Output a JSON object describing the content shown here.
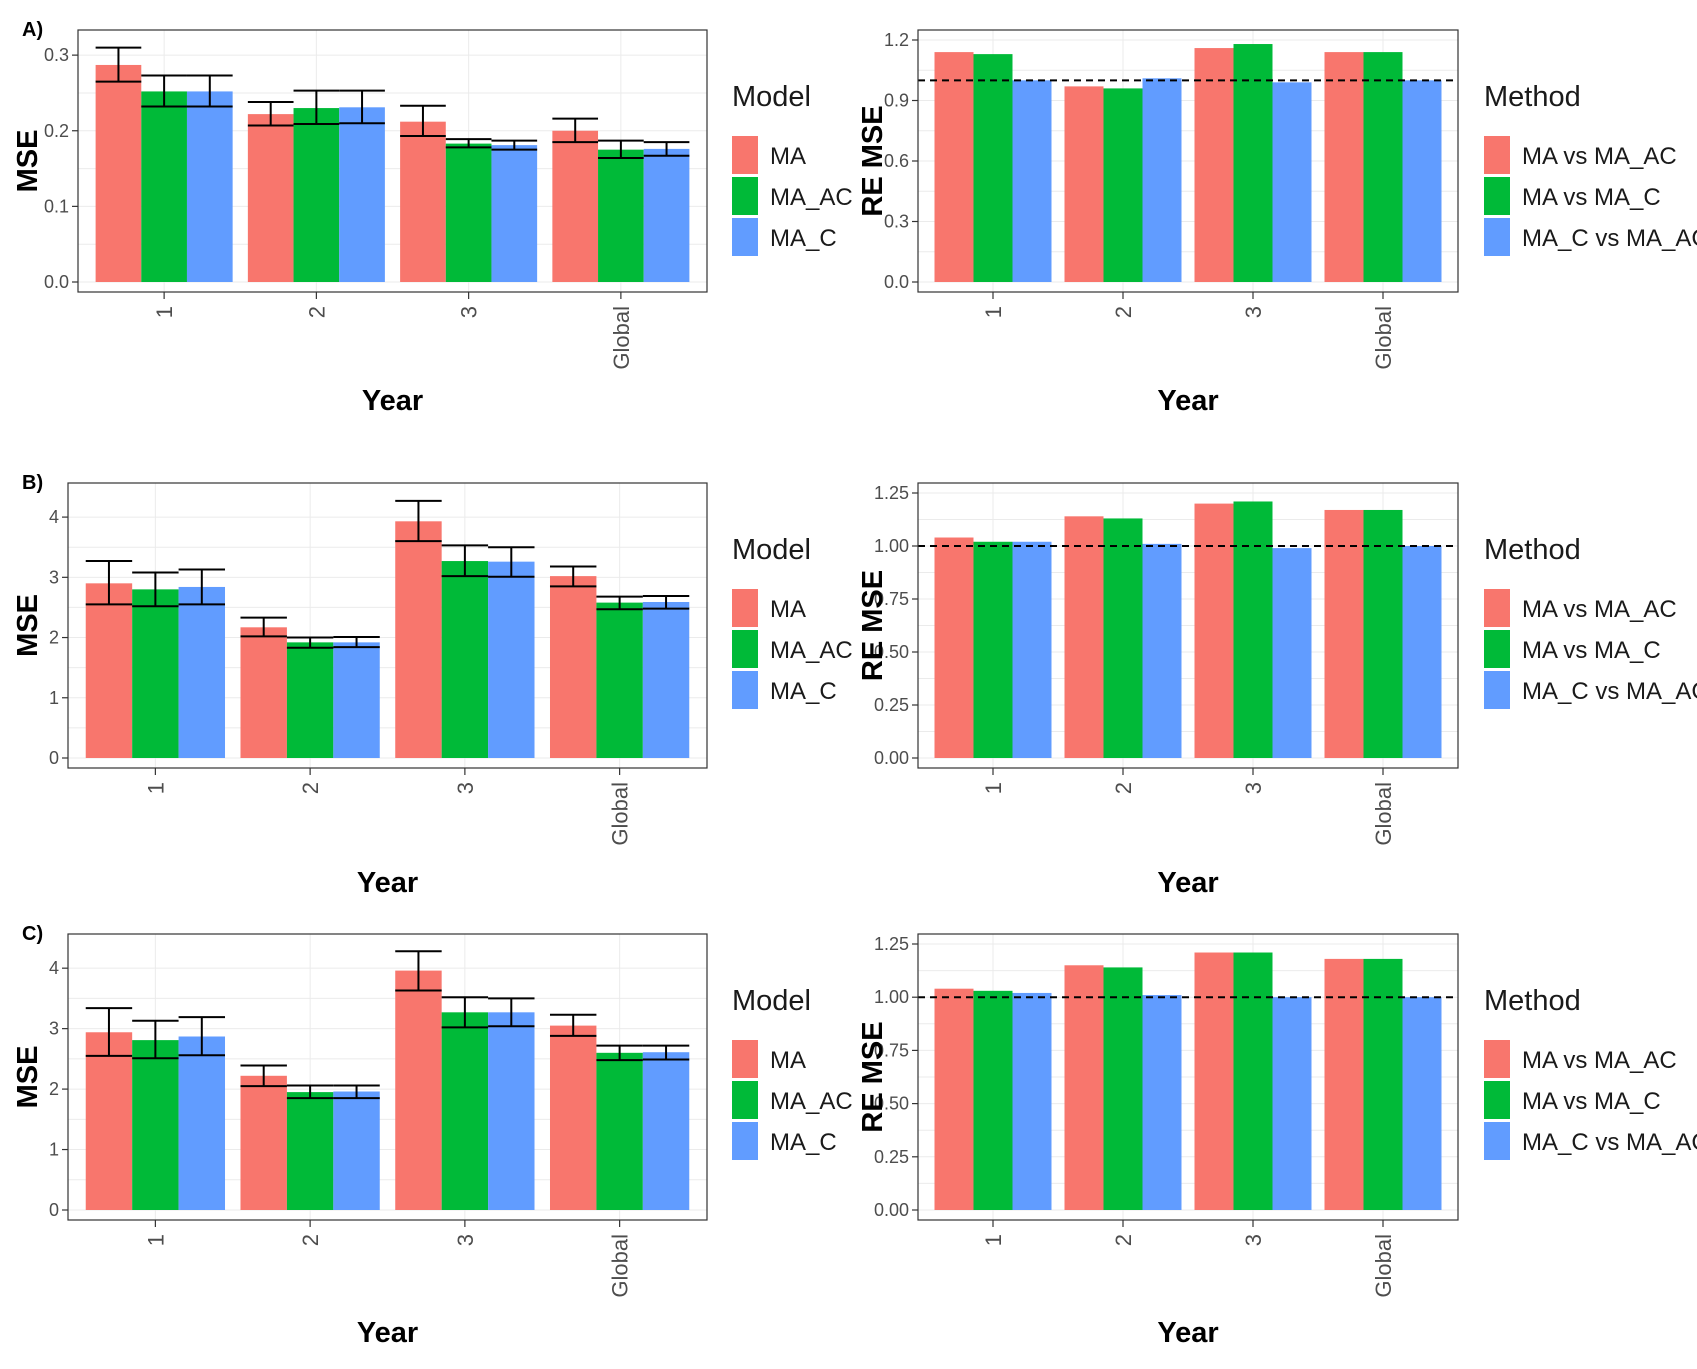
{
  "colors": {
    "MA": "#F8766D",
    "MA_AC": "#00BA38",
    "MA_C": "#619CFF",
    "panel_border": "#333333",
    "grid": "#ebebeb",
    "reference_line": "#000000"
  },
  "rows": [
    {
      "letter": "A)",
      "left": {
        "chart_data": {
          "type": "bar",
          "categories": [
            "1",
            "2",
            "3",
            "Global"
          ],
          "series": [
            {
              "name": "MA",
              "values": [
                0.287,
                0.222,
                0.212,
                0.2
              ],
              "err_low": [
                0.265,
                0.207,
                0.193,
                0.185
              ],
              "err_high": [
                0.31,
                0.238,
                0.233,
                0.216
              ]
            },
            {
              "name": "MA_AC",
              "values": [
                0.252,
                0.23,
                0.183,
                0.175
              ],
              "err_low": [
                0.232,
                0.209,
                0.178,
                0.164
              ],
              "err_high": [
                0.273,
                0.253,
                0.189,
                0.187
              ]
            },
            {
              "name": "MA_C",
              "values": [
                0.252,
                0.231,
                0.181,
                0.176
              ],
              "err_low": [
                0.232,
                0.21,
                0.175,
                0.167
              ],
              "err_high": [
                0.273,
                0.253,
                0.187,
                0.185
              ]
            }
          ],
          "xlabel": "Year",
          "ylabel": "MSE",
          "ylim": [
            0,
            0.32
          ],
          "yticks": [
            "0.0",
            "0.1",
            "0.2",
            "0.3"
          ],
          "legend_title": "Model",
          "legend_position": "right",
          "grid": true
        }
      },
      "right": {
        "chart_data": {
          "type": "bar",
          "categories": [
            "1",
            "2",
            "3",
            "Global"
          ],
          "series": [
            {
              "name": "MA vs MA_AC",
              "values": [
                1.14,
                0.97,
                1.16,
                1.14
              ]
            },
            {
              "name": "MA vs MA_C",
              "values": [
                1.13,
                0.96,
                1.18,
                1.14
              ]
            },
            {
              "name": "MA_C vs MA_AC",
              "values": [
                1.0,
                1.01,
                0.99,
                1.0
              ]
            }
          ],
          "reference_line": 1.0,
          "xlabel": "Year",
          "ylabel": "RE MSE",
          "ylim": [
            0,
            1.2
          ],
          "yticks": [
            "0.0",
            "0.3",
            "0.6",
            "0.9",
            "1.2"
          ],
          "legend_title": "Method",
          "legend_position": "right",
          "grid": true
        }
      }
    },
    {
      "letter": "B)",
      "left": {
        "chart_data": {
          "type": "bar",
          "categories": [
            "1",
            "2",
            "3",
            "Global"
          ],
          "series": [
            {
              "name": "MA",
              "values": [
                2.9,
                2.17,
                3.93,
                3.02
              ],
              "err_low": [
                2.55,
                2.02,
                3.6,
                2.85
              ],
              "err_high": [
                3.27,
                2.33,
                4.27,
                3.18
              ]
            },
            {
              "name": "MA_AC",
              "values": [
                2.8,
                1.92,
                3.27,
                2.58
              ],
              "err_low": [
                2.52,
                1.83,
                3.02,
                2.47
              ],
              "err_high": [
                3.08,
                2.0,
                3.53,
                2.68
              ]
            },
            {
              "name": "MA_C",
              "values": [
                2.84,
                1.92,
                3.26,
                2.59
              ],
              "err_low": [
                2.55,
                1.84,
                3.01,
                2.48
              ],
              "err_high": [
                3.13,
                2.01,
                3.5,
                2.69
              ]
            }
          ],
          "xlabel": "Year",
          "ylabel": "MSE",
          "ylim": [
            0,
            4.4
          ],
          "yticks": [
            "0",
            "1",
            "2",
            "3",
            "4"
          ],
          "legend_title": "Model",
          "legend_position": "right",
          "grid": true
        }
      },
      "right": {
        "chart_data": {
          "type": "bar",
          "categories": [
            "1",
            "2",
            "3",
            "Global"
          ],
          "series": [
            {
              "name": "MA vs MA_AC",
              "values": [
                1.04,
                1.14,
                1.2,
                1.17
              ]
            },
            {
              "name": "MA vs MA_C",
              "values": [
                1.02,
                1.13,
                1.21,
                1.17
              ]
            },
            {
              "name": "MA_C vs MA_AC",
              "values": [
                1.02,
                1.01,
                0.99,
                1.0
              ]
            }
          ],
          "reference_line": 1.0,
          "xlabel": "Year",
          "ylabel": "RE MSE",
          "ylim": [
            0,
            1.25
          ],
          "yticks": [
            "0.00",
            "0.25",
            "0.50",
            "0.75",
            "1.00",
            "1.25"
          ],
          "legend_title": "Method",
          "legend_position": "right",
          "grid": true
        }
      }
    },
    {
      "letter": "C)",
      "left": {
        "chart_data": {
          "type": "bar",
          "categories": [
            "1",
            "2",
            "3",
            "Global"
          ],
          "series": [
            {
              "name": "MA",
              "values": [
                2.94,
                2.22,
                3.96,
                3.05
              ],
              "err_low": [
                2.55,
                2.05,
                3.63,
                2.88
              ],
              "err_high": [
                3.34,
                2.39,
                4.28,
                3.23
              ]
            },
            {
              "name": "MA_AC",
              "values": [
                2.81,
                1.95,
                3.27,
                2.6
              ],
              "err_low": [
                2.51,
                1.85,
                3.02,
                2.48
              ],
              "err_high": [
                3.13,
                2.06,
                3.52,
                2.72
              ]
            },
            {
              "name": "MA_C",
              "values": [
                2.87,
                1.96,
                3.27,
                2.61
              ],
              "err_low": [
                2.56,
                1.85,
                3.04,
                2.49
              ],
              "err_high": [
                3.19,
                2.06,
                3.5,
                2.72
              ]
            }
          ],
          "xlabel": "Year",
          "ylabel": "MSE",
          "ylim": [
            0,
            4.4
          ],
          "yticks": [
            "0",
            "1",
            "2",
            "3",
            "4"
          ],
          "legend_title": "Model",
          "legend_position": "right",
          "grid": true
        }
      },
      "right": {
        "chart_data": {
          "type": "bar",
          "categories": [
            "1",
            "2",
            "3",
            "Global"
          ],
          "series": [
            {
              "name": "MA vs MA_AC",
              "values": [
                1.04,
                1.15,
                1.21,
                1.18
              ]
            },
            {
              "name": "MA vs MA_C",
              "values": [
                1.03,
                1.14,
                1.21,
                1.18
              ]
            },
            {
              "name": "MA_C vs MA_AC",
              "values": [
                1.02,
                1.01,
                1.0,
                1.0
              ]
            }
          ],
          "reference_line": 1.0,
          "xlabel": "Year",
          "ylabel": "RE MSE",
          "ylim": [
            0,
            1.25
          ],
          "yticks": [
            "0.00",
            "0.25",
            "0.50",
            "0.75",
            "1.00",
            "1.25"
          ],
          "legend_title": "Method",
          "legend_position": "right",
          "grid": true
        }
      }
    }
  ]
}
